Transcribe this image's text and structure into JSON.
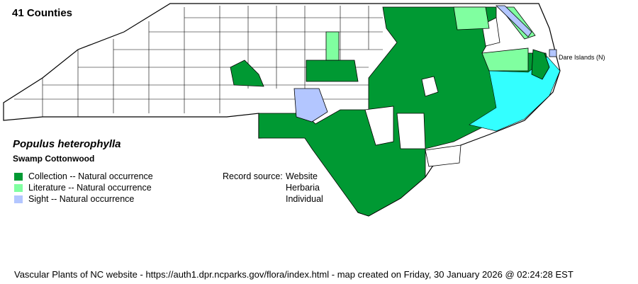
{
  "title": "41 Counties",
  "species": {
    "scientific_name": "Populus heterophylla",
    "common_name": "Swamp Cottonwood"
  },
  "legend": [
    {
      "label": "Collection -- Natural occurrence",
      "color": "#009933"
    },
    {
      "label": "Literature -- Natural occurrence",
      "color": "#80ffa0"
    },
    {
      "label": "Sight -- Natural occurrence",
      "color": "#b3c6ff"
    }
  ],
  "record_source": {
    "label": "Record source:",
    "values": [
      "Website",
      "Herbaria",
      "Individual"
    ]
  },
  "map": {
    "water_color": "#33ffff",
    "extra_label": "Dare Islands (N)"
  },
  "footer": "Vascular Plants of NC website - https://auth1.dpr.ncparks.gov/flora/index.html - map created on Friday, 30 January 2026 @ 02:24:28 EST"
}
